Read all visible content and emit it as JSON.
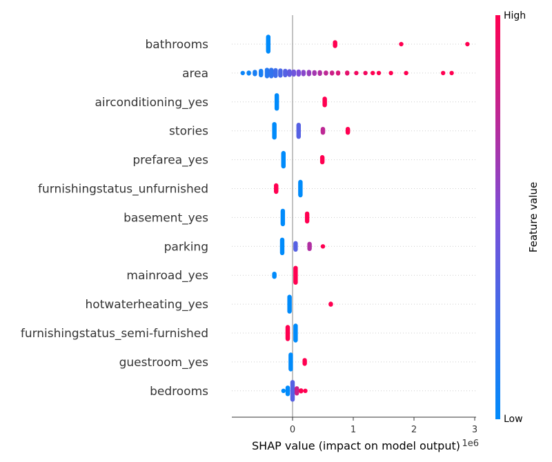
{
  "chart_data": {
    "type": "scatter",
    "subtype": "shap-beeswarm",
    "xlabel": "SHAP value (impact on model output)",
    "x_offset_label": "1e6",
    "xlim": [
      -1.0,
      3.1
    ],
    "x_ticks": [
      "0",
      "1",
      "2",
      "3"
    ],
    "x_tick_values": [
      0,
      1,
      2,
      3
    ],
    "colorbar": {
      "title": "Feature value",
      "high_label": "High",
      "low_label": "Low",
      "low_color": "#008bfb",
      "mid_color": "#7b4fd8",
      "high_color": "#ff0051"
    },
    "features": [
      {
        "name": "bathrooms",
        "points": [
          {
            "x": -0.4,
            "n": 22,
            "f": 0.0
          },
          {
            "x": 0.7,
            "n": 6,
            "f": 1.0
          },
          {
            "x": 1.79,
            "n": 1,
            "f": 1.0
          },
          {
            "x": 2.88,
            "n": 1,
            "f": 1.0
          }
        ]
      },
      {
        "name": "area",
        "points": [
          {
            "x": -0.82,
            "n": 1,
            "f": 0.05
          },
          {
            "x": -0.72,
            "n": 2,
            "f": 0.05
          },
          {
            "x": -0.62,
            "n": 4,
            "f": 0.1
          },
          {
            "x": -0.52,
            "n": 7,
            "f": 0.1
          },
          {
            "x": -0.42,
            "n": 10,
            "f": 0.15
          },
          {
            "x": -0.35,
            "n": 10,
            "f": 0.2
          },
          {
            "x": -0.28,
            "n": 9,
            "f": 0.25
          },
          {
            "x": -0.2,
            "n": 8,
            "f": 0.3
          },
          {
            "x": -0.12,
            "n": 7,
            "f": 0.35
          },
          {
            "x": -0.05,
            "n": 6,
            "f": 0.4
          },
          {
            "x": 0.02,
            "n": 5,
            "f": 0.45
          },
          {
            "x": 0.1,
            "n": 5,
            "f": 0.5
          },
          {
            "x": 0.18,
            "n": 4,
            "f": 0.55
          },
          {
            "x": 0.27,
            "n": 4,
            "f": 0.6
          },
          {
            "x": 0.36,
            "n": 3,
            "f": 0.65
          },
          {
            "x": 0.45,
            "n": 3,
            "f": 0.7
          },
          {
            "x": 0.55,
            "n": 2,
            "f": 0.75
          },
          {
            "x": 0.65,
            "n": 2,
            "f": 0.8
          },
          {
            "x": 0.75,
            "n": 2,
            "f": 0.85
          },
          {
            "x": 0.9,
            "n": 2,
            "f": 0.9
          },
          {
            "x": 1.05,
            "n": 1,
            "f": 0.95
          },
          {
            "x": 1.2,
            "n": 1,
            "f": 0.95
          },
          {
            "x": 1.32,
            "n": 1,
            "f": 1.0
          },
          {
            "x": 1.42,
            "n": 1,
            "f": 1.0
          },
          {
            "x": 1.62,
            "n": 1,
            "f": 1.0
          },
          {
            "x": 1.87,
            "n": 1,
            "f": 1.0
          },
          {
            "x": 2.48,
            "n": 1,
            "f": 1.0
          },
          {
            "x": 2.62,
            "n": 1,
            "f": 1.0
          }
        ]
      },
      {
        "name": "airconditioning_yes",
        "points": [
          {
            "x": -0.26,
            "n": 20,
            "f": 0.0
          },
          {
            "x": 0.53,
            "n": 10,
            "f": 1.0
          }
        ]
      },
      {
        "name": "stories",
        "points": [
          {
            "x": -0.3,
            "n": 20,
            "f": 0.0
          },
          {
            "x": 0.1,
            "n": 18,
            "f": 0.35
          },
          {
            "x": 0.5,
            "n": 6,
            "f": 0.75
          },
          {
            "x": 0.91,
            "n": 6,
            "f": 1.0
          }
        ]
      },
      {
        "name": "prefarea_yes",
        "points": [
          {
            "x": -0.15,
            "n": 20,
            "f": 0.0
          },
          {
            "x": 0.49,
            "n": 8,
            "f": 1.0
          }
        ]
      },
      {
        "name": "furnishingstatus_unfurnished",
        "points": [
          {
            "x": -0.27,
            "n": 10,
            "f": 1.0
          },
          {
            "x": 0.13,
            "n": 20,
            "f": 0.0
          }
        ]
      },
      {
        "name": "basement_yes",
        "points": [
          {
            "x": -0.16,
            "n": 20,
            "f": 0.0
          },
          {
            "x": 0.24,
            "n": 12,
            "f": 1.0
          }
        ]
      },
      {
        "name": "parking",
        "points": [
          {
            "x": -0.17,
            "n": 20,
            "f": 0.0
          },
          {
            "x": 0.05,
            "n": 10,
            "f": 0.35
          },
          {
            "x": 0.28,
            "n": 8,
            "f": 0.7
          },
          {
            "x": 0.5,
            "n": 1,
            "f": 1.0
          }
        ]
      },
      {
        "name": "mainroad_yes",
        "points": [
          {
            "x": -0.3,
            "n": 5,
            "f": 0.0
          },
          {
            "x": 0.05,
            "n": 22,
            "f": 1.0
          }
        ]
      },
      {
        "name": "hotwaterheating_yes",
        "points": [
          {
            "x": -0.05,
            "n": 22,
            "f": 0.0
          },
          {
            "x": 0.63,
            "n": 2,
            "f": 1.0
          }
        ]
      },
      {
        "name": "furnishingstatus_semi-furnished",
        "points": [
          {
            "x": -0.08,
            "n": 18,
            "f": 1.0
          },
          {
            "x": 0.05,
            "n": 22,
            "f": 0.0
          }
        ]
      },
      {
        "name": "guestroom_yes",
        "points": [
          {
            "x": -0.03,
            "n": 22,
            "f": 0.0
          },
          {
            "x": 0.2,
            "n": 6,
            "f": 1.0
          }
        ]
      },
      {
        "name": "bedrooms",
        "points": [
          {
            "x": -0.15,
            "n": 1,
            "f": 0.0
          },
          {
            "x": -0.08,
            "n": 10,
            "f": 0.0
          },
          {
            "x": 0.0,
            "n": 26,
            "f": 0.35
          },
          {
            "x": 0.07,
            "n": 8,
            "f": 0.8
          },
          {
            "x": 0.14,
            "n": 2,
            "f": 1.0
          },
          {
            "x": 0.21,
            "n": 1,
            "f": 1.0
          }
        ]
      }
    ]
  }
}
